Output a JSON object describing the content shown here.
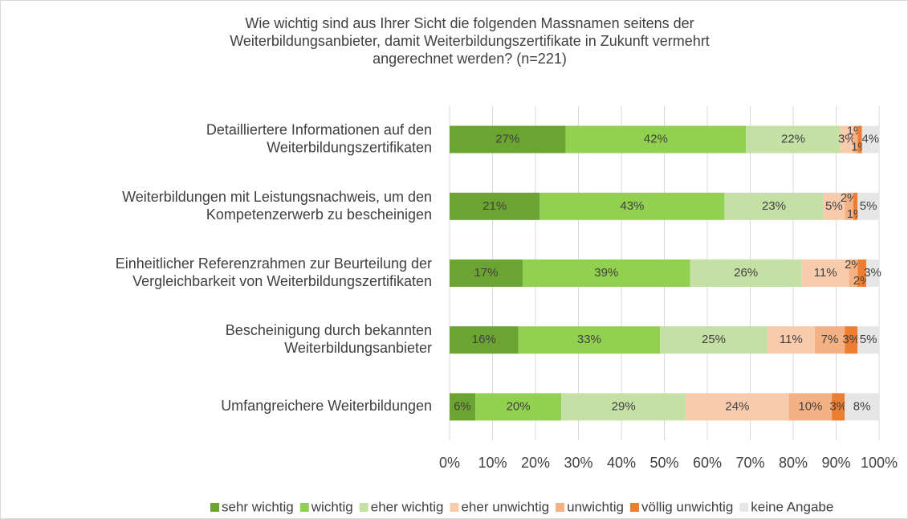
{
  "chart_data": {
    "type": "stacked_barh",
    "title": "Wie wichtig sind aus Ihrer Sicht die folgenden Massnamen seitens der\nWeiterbildungsanbieter, damit Weiterbildungszertifikate in Zukunft vermehrt\nangerechnet werden? (n=221)",
    "categories": [
      "Detailliertere Informationen auf den\nWeiterbildungszertifikaten",
      "Weiterbildungen mit Leistungsnachweis, um den\nKompetenzerwerb zu bescheinigen",
      "Einheitlicher Referenzrahmen zur Beurteilung der\nVergleichbarkeit von Weiterbildungszertifikaten",
      "Bescheinigung durch bekannten\nWeiterbildungsanbieter",
      "Umfangreichere Weiterbildungen"
    ],
    "series": [
      {
        "name": "sehr wichtig",
        "color": "#6ba431",
        "values": [
          27,
          21,
          17,
          16,
          6
        ],
        "value_labels": [
          "27%",
          "21%",
          "17%",
          "16%",
          "6%"
        ]
      },
      {
        "name": "wichtig",
        "color": "#92d050",
        "values": [
          42,
          43,
          39,
          33,
          20
        ],
        "value_labels": [
          "42%",
          "43%",
          "39%",
          "33%",
          "20%"
        ]
      },
      {
        "name": "eher wichtig",
        "color": "#c5e0a5",
        "values": [
          22,
          23,
          26,
          25,
          29
        ],
        "value_labels": [
          "22%",
          "23%",
          "26%",
          "25%",
          "29%"
        ]
      },
      {
        "name": "eher unwichtig",
        "color": "#f8cbad",
        "values": [
          3,
          5,
          11,
          11,
          24
        ],
        "value_labels": [
          "3%",
          "5%",
          "11%",
          "11%",
          "24%"
        ]
      },
      {
        "name": "unwichtig",
        "color": "#f4b183",
        "values": [
          1,
          2,
          2,
          7,
          10
        ],
        "value_labels": [
          "1%",
          "2%",
          "2%",
          "7%",
          "10%"
        ]
      },
      {
        "name": "völlig unwichtig",
        "color": "#ed7d31",
        "values": [
          1,
          1,
          2,
          3,
          3
        ],
        "value_labels": [
          "1%",
          "1%",
          "2%",
          "3%",
          "3%"
        ]
      },
      {
        "name": "keine Angabe",
        "color": "#e7e6e6",
        "values": [
          4,
          5,
          3,
          5,
          8
        ],
        "value_labels": [
          "4%",
          "5%",
          "3%",
          "5%",
          "8%"
        ]
      }
    ],
    "xlim": [
      0,
      100
    ],
    "xticks": [
      {
        "value": 0,
        "label": "0%"
      },
      {
        "value": 10,
        "label": "10%"
      },
      {
        "value": 20,
        "label": "20%"
      },
      {
        "value": 30,
        "label": "30%"
      },
      {
        "value": 40,
        "label": "40%"
      },
      {
        "value": 50,
        "label": "50%"
      },
      {
        "value": 60,
        "label": "60%"
      },
      {
        "value": 70,
        "label": "70%"
      },
      {
        "value": 80,
        "label": "80%"
      },
      {
        "value": 90,
        "label": "90%"
      },
      {
        "value": 100,
        "label": "100%"
      }
    ],
    "grid": true,
    "legend": "bottom"
  }
}
